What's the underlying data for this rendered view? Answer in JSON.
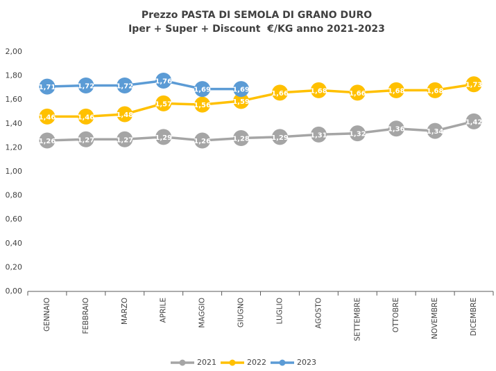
{
  "chart_data": {
    "type": "line",
    "title": "Prezzo PASTA DI SEMOLA DI GRANO DURO",
    "subtitle": "Iper + Super + Discount  €/KG anno 2021-2023",
    "categories": [
      "GENNAIO",
      "FEBBRAIO",
      "MARZO",
      "APRILE",
      "MAGGIO",
      "GIUGNO",
      "LUGLIO",
      "AGOSTO",
      "SETTEMBRE",
      "OTTOBRE",
      "NOVEMBRE",
      "DICEMBRE"
    ],
    "series": [
      {
        "name": "2021",
        "color": "#a5a5a5",
        "values": [
          1.26,
          1.27,
          1.27,
          1.29,
          1.26,
          1.28,
          1.29,
          1.31,
          1.32,
          1.36,
          1.34,
          1.42
        ],
        "value_labels": [
          "1,26",
          "1,27",
          "1,27",
          "1,29",
          "1,26",
          "1,28",
          "1,29",
          "1,31",
          "1,32",
          "1,36",
          "1,34",
          "1,42"
        ]
      },
      {
        "name": "2022",
        "color": "#ffc000",
        "values": [
          1.46,
          1.46,
          1.48,
          1.57,
          1.56,
          1.59,
          1.66,
          1.68,
          1.66,
          1.68,
          1.68,
          1.73
        ],
        "value_labels": [
          "1,46",
          "1,46",
          "1,48",
          "1,57",
          "1,56",
          "1,59",
          "1,66",
          "1,68",
          "1,66",
          "1,68",
          "1,68",
          "1,73"
        ]
      },
      {
        "name": "2023",
        "color": "#5b9bd5",
        "values": [
          1.71,
          1.72,
          1.72,
          1.76,
          1.69,
          1.69,
          null,
          null,
          null,
          null,
          null,
          null
        ],
        "value_labels": [
          "1,71",
          "1,72",
          "1,72",
          "1,76",
          "1,69",
          "1,69",
          null,
          null,
          null,
          null,
          null,
          null
        ]
      }
    ],
    "ylim": [
      0,
      2
    ],
    "yticks": [
      {
        "value": 0,
        "label": "0,00"
      },
      {
        "value": 0.2,
        "label": "0,20"
      },
      {
        "value": 0.4,
        "label": "0,40"
      },
      {
        "value": 0.6,
        "label": "0,60"
      },
      {
        "value": 0.8,
        "label": "0,80"
      },
      {
        "value": 1,
        "label": "1,00"
      },
      {
        "value": 1.2,
        "label": "1,20"
      },
      {
        "value": 1.4,
        "label": "1,40"
      },
      {
        "value": 1.6,
        "label": "1,60"
      },
      {
        "value": 1.8,
        "label": "1,80"
      },
      {
        "value": 2,
        "label": "2,00"
      }
    ],
    "grid": false,
    "legend": "bottom"
  }
}
